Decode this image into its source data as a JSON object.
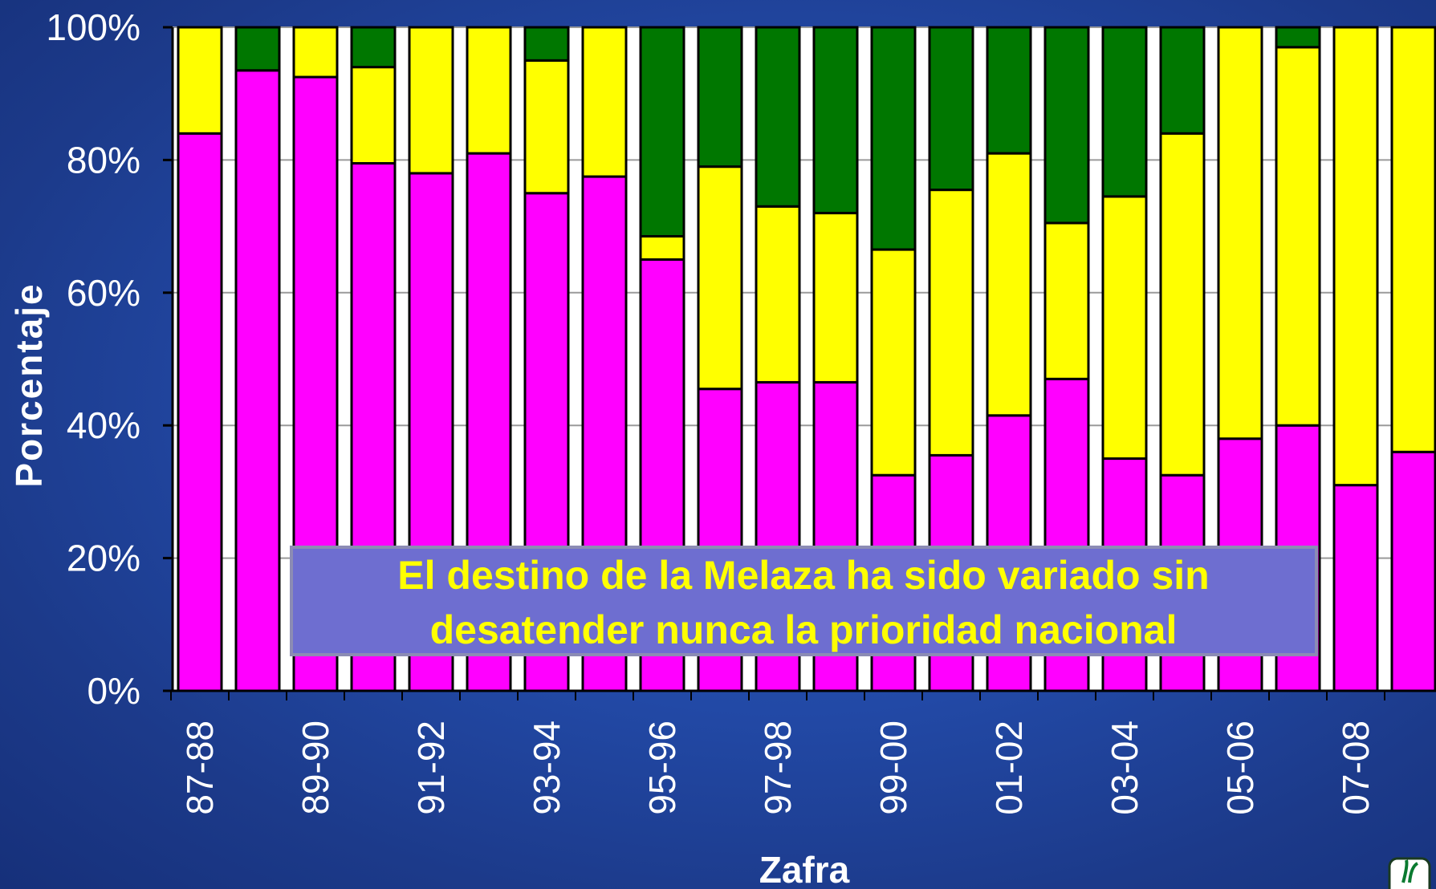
{
  "chart_data": {
    "type": "bar",
    "stacked": true,
    "normalized": true,
    "ylabel": "Porcentaje",
    "xlabel": "Zafra",
    "ylim": [
      0,
      100
    ],
    "y_ticks": [
      "0%",
      "20%",
      "40%",
      "60%",
      "80%",
      "100%"
    ],
    "categories": [
      "87-88",
      "88-89",
      "89-90",
      "90-91",
      "91-92",
      "92-93",
      "93-94",
      "94-95",
      "95-96",
      "96-97",
      "97-98",
      "98-99",
      "99-00",
      "00-01",
      "01-02",
      "02-03",
      "03-04",
      "04-05",
      "05-06",
      "06-07",
      "07-08",
      "08-09"
    ],
    "x_tick_labels": [
      "87-88",
      "89-90",
      "91-92",
      "93-94",
      "95-96",
      "97-98",
      "99-00",
      "01-02",
      "03-04",
      "05-06",
      "07-08"
    ],
    "series": [
      {
        "color": "#ff00ff",
        "values": [
          84,
          93.5,
          92.5,
          79.5,
          78,
          81,
          75,
          77.5,
          65,
          45.5,
          46.5,
          46.5,
          32.5,
          35.5,
          41.5,
          47,
          35,
          32.5,
          38,
          40,
          31,
          36
        ]
      },
      {
        "color": "#ffff00",
        "values": [
          16,
          0,
          7.5,
          14.5,
          22,
          19,
          20,
          22.5,
          3.5,
          33.5,
          26.5,
          25.5,
          34,
          40,
          39.5,
          23.5,
          39.5,
          51.5,
          62,
          57,
          69,
          64
        ]
      },
      {
        "color": "#007700",
        "values": [
          0,
          6.5,
          0,
          6,
          0,
          0,
          5,
          0,
          31.5,
          21,
          27,
          28,
          33.5,
          24.5,
          19,
          29.5,
          25.5,
          16,
          0,
          3,
          0,
          0
        ]
      }
    ],
    "grid": true
  },
  "annotation": {
    "line1": "El destino de la Melaza ha sido variado sin",
    "line2": "desatender nunca la prioridad nacional"
  }
}
